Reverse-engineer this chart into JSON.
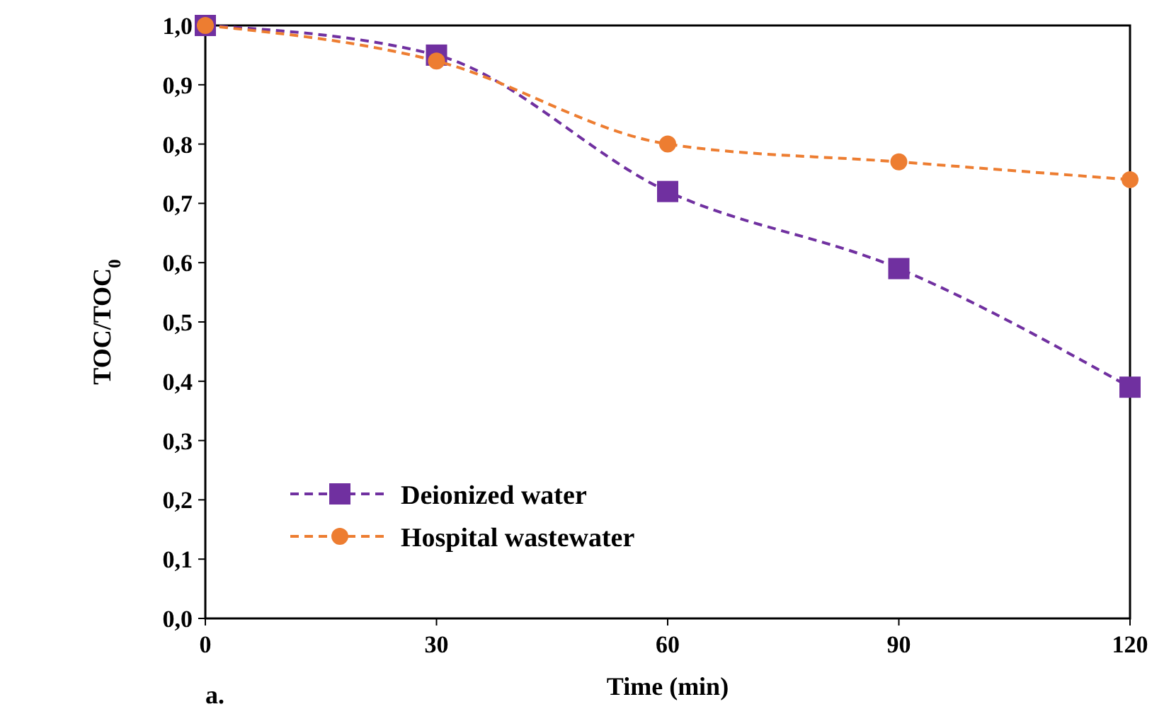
{
  "chart_data": {
    "type": "line",
    "xlabel": "Time (min)",
    "ylabel": "TOC/TOC$_{0}$",
    "x": [
      0,
      30,
      60,
      90,
      120
    ],
    "series": [
      {
        "name": "Deionized water",
        "color": "#7030a0",
        "marker": "square",
        "values": [
          1.0,
          0.95,
          0.72,
          0.59,
          0.39
        ]
      },
      {
        "name": "Hospital wastewater",
        "color": "#ed7d31",
        "marker": "circle",
        "values": [
          1.0,
          0.94,
          0.8,
          0.77,
          0.74
        ]
      }
    ],
    "xlim": [
      0,
      120
    ],
    "xticks": [
      0,
      30,
      60,
      90,
      120
    ],
    "ylim": [
      0,
      1
    ],
    "yticks": [
      {
        "value": 0,
        "label": "0,0"
      },
      {
        "value": 0.1,
        "label": "0,1"
      },
      {
        "value": 0.2,
        "label": "0,2"
      },
      {
        "value": 0.3,
        "label": "0,3"
      },
      {
        "value": 0.4,
        "label": "0,4"
      },
      {
        "value": 0.5,
        "label": "0,5"
      },
      {
        "value": 0.6,
        "label": "0,6"
      },
      {
        "value": 0.7,
        "label": "0,7"
      },
      {
        "value": 0.8,
        "label": "0,8"
      },
      {
        "value": 0.9,
        "label": "0,9"
      },
      {
        "value": 1,
        "label": "1,0"
      }
    ],
    "line_style": "dashed",
    "legend": "bottom left",
    "grid": false,
    "annotations": [
      "a."
    ]
  }
}
